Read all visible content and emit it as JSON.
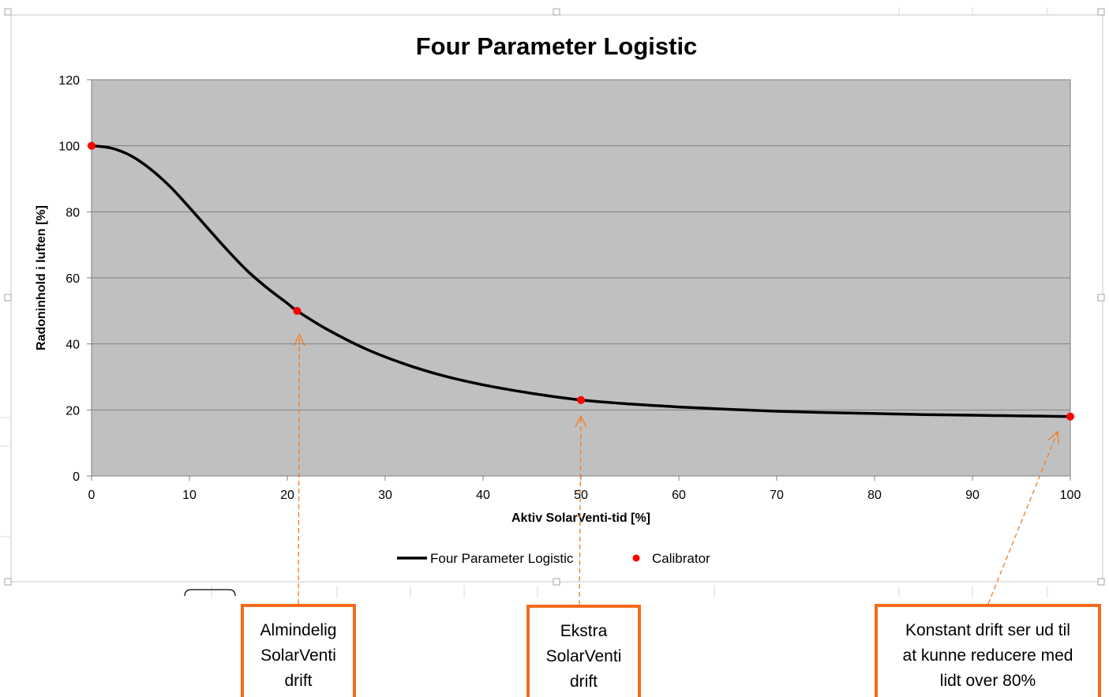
{
  "chart_data": {
    "type": "line",
    "title": "Four Parameter Logistic",
    "xlabel": "Aktiv SolarVenti-tid [%]",
    "ylabel": "Radoninhold i luften [%]",
    "xlim": [
      0,
      100
    ],
    "ylim": [
      0,
      120
    ],
    "xticks": [
      0,
      10,
      20,
      30,
      40,
      50,
      60,
      70,
      80,
      90,
      100
    ],
    "yticks": [
      0,
      20,
      40,
      60,
      80,
      100,
      120
    ],
    "grid": "horizontal",
    "legend_position": "bottom",
    "series": [
      {
        "name": "Four Parameter Logistic",
        "kind": "line",
        "color": "#000000",
        "x": [
          0,
          2,
          4,
          6,
          8,
          10,
          12,
          14,
          16,
          18,
          20,
          21,
          24,
          28,
          32,
          36,
          40,
          45,
          50,
          55,
          60,
          65,
          70,
          75,
          80,
          85,
          90,
          95,
          100
        ],
        "y": [
          100,
          99.3,
          97.0,
          93.0,
          87.7,
          81.3,
          74.6,
          68.0,
          61.9,
          56.8,
          52.3,
          50,
          44.5,
          38.5,
          33.9,
          30.3,
          27.6,
          25.0,
          23.0,
          21.8,
          20.9,
          20.2,
          19.6,
          19.2,
          18.9,
          18.6,
          18.4,
          18.2,
          18.0
        ]
      },
      {
        "name": "Calibrator",
        "kind": "scatter",
        "color": "#ff0000",
        "x": [
          0,
          21,
          50,
          100
        ],
        "y": [
          100,
          50,
          23,
          18
        ]
      }
    ]
  },
  "annotations": [
    {
      "lines": [
        "Almindelig",
        "SolarVenti",
        "drift"
      ],
      "points_to": [
        21,
        50
      ]
    },
    {
      "lines": [
        "Ekstra",
        "SolarVenti",
        "drift"
      ],
      "points_to": [
        50,
        23
      ]
    },
    {
      "lines": [
        "Konstant drift ser ud til",
        "at kunne reducere med",
        "lidt over 80%"
      ],
      "points_to": [
        100,
        18
      ]
    }
  ],
  "colors": {
    "plot_background": "#c0c0c0",
    "callout_border": "#f26b1d",
    "arrow": "#f47b20"
  }
}
